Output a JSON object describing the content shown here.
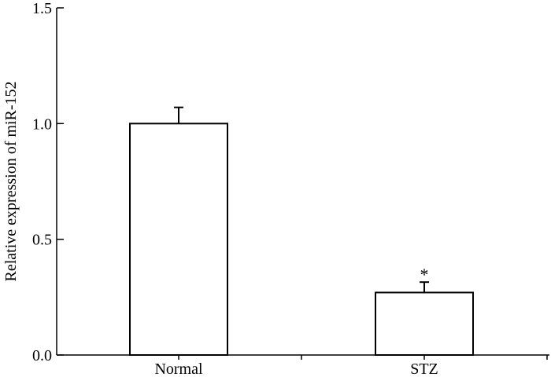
{
  "chart_data": {
    "type": "bar",
    "categories": [
      "Normal",
      "STZ"
    ],
    "values": [
      1.0,
      0.27
    ],
    "errors": [
      0.07,
      0.045
    ],
    "annotations": [
      "",
      "*"
    ],
    "title": "",
    "xlabel": "",
    "ylabel": "Relative expression of miR-152",
    "ylim": [
      0,
      1.5
    ],
    "yticks": [
      0.0,
      0.5,
      1.0,
      1.5
    ],
    "ytick_labels": [
      "0.0",
      "0.5",
      "1.0",
      "1.5"
    ],
    "grid": false,
    "legend": "none",
    "bar_fill": "#ffffff",
    "bar_edge": "#000000"
  }
}
